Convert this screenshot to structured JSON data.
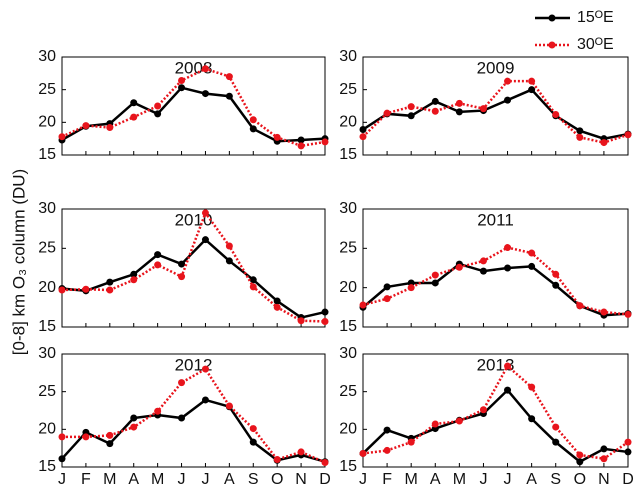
{
  "ylabel": "[0-8] km O₃ column (DU)",
  "chart_data": [
    {
      "type": "line",
      "title": "2008",
      "ylim": [
        15,
        30
      ],
      "yticks": [
        15,
        20,
        25,
        30
      ],
      "series": [
        {
          "name": "15ᴼE",
          "color": "#000000",
          "values": [
            17.3,
            19.4,
            19.8,
            23.0,
            21.3,
            25.3,
            24.4,
            24.0,
            19.0,
            17.1,
            17.3,
            17.5
          ]
        },
        {
          "name": "30ᴼE",
          "color": "#e8141c",
          "values": [
            17.8,
            19.5,
            19.2,
            20.8,
            22.5,
            26.4,
            28.2,
            27.0,
            20.4,
            17.7,
            16.4,
            17.0
          ]
        }
      ]
    },
    {
      "type": "line",
      "title": "2009",
      "ylim": [
        15,
        30
      ],
      "yticks": [
        15,
        20,
        25,
        30
      ],
      "series": [
        {
          "name": "15ᴼE",
          "color": "#000000",
          "values": [
            18.9,
            21.3,
            21.0,
            23.2,
            21.6,
            21.8,
            23.4,
            25.0,
            21.0,
            18.7,
            17.5,
            18.2
          ]
        },
        {
          "name": "30ᴼE",
          "color": "#e8141c",
          "values": [
            17.8,
            21.4,
            22.4,
            21.7,
            22.9,
            22.1,
            26.3,
            26.3,
            21.2,
            17.7,
            16.9,
            18.1
          ]
        }
      ]
    },
    {
      "type": "line",
      "title": "2010",
      "ylim": [
        15,
        30
      ],
      "yticks": [
        15,
        20,
        25,
        30
      ],
      "series": [
        {
          "name": "15ᴼE",
          "color": "#000000",
          "values": [
            19.9,
            19.6,
            20.7,
            21.7,
            24.2,
            23.0,
            26.1,
            23.4,
            21.0,
            18.3,
            16.2,
            16.9
          ]
        },
        {
          "name": "30ᴼE",
          "color": "#e8141c",
          "values": [
            19.7,
            19.8,
            19.7,
            21.0,
            22.9,
            21.4,
            29.5,
            25.3,
            20.1,
            17.5,
            15.8,
            15.7
          ]
        }
      ]
    },
    {
      "type": "line",
      "title": "2011",
      "ylim": [
        15,
        30
      ],
      "yticks": [
        15,
        20,
        25,
        30
      ],
      "series": [
        {
          "name": "15ᴼE",
          "color": "#000000",
          "values": [
            17.5,
            20.1,
            20.6,
            20.6,
            23.0,
            22.1,
            22.5,
            22.7,
            20.3,
            17.7,
            16.5,
            16.7
          ]
        },
        {
          "name": "30ᴼE",
          "color": "#e8141c",
          "values": [
            17.8,
            18.6,
            20.0,
            21.6,
            22.6,
            23.4,
            25.1,
            24.4,
            21.7,
            17.7,
            16.9,
            16.6
          ]
        }
      ]
    },
    {
      "type": "line",
      "title": "2012",
      "ylim": [
        15,
        30
      ],
      "yticks": [
        15,
        20,
        25,
        30
      ],
      "categories": [
        "J",
        "F",
        "M",
        "A",
        "M",
        "J",
        "J",
        "A",
        "S",
        "O",
        "N",
        "D"
      ],
      "series": [
        {
          "name": "15ᴼE",
          "color": "#000000",
          "values": [
            16.1,
            19.6,
            18.1,
            21.5,
            21.9,
            21.5,
            23.9,
            23.0,
            18.3,
            15.9,
            16.6,
            15.7
          ]
        },
        {
          "name": "30ᴼE",
          "color": "#e8141c",
          "values": [
            19.0,
            19.0,
            19.2,
            20.3,
            22.4,
            26.2,
            28.0,
            23.1,
            20.1,
            16.0,
            17.0,
            15.6
          ]
        }
      ]
    },
    {
      "type": "line",
      "title": "2013",
      "ylim": [
        15,
        30
      ],
      "yticks": [
        15,
        20,
        25,
        30
      ],
      "categories": [
        "J",
        "F",
        "M",
        "A",
        "M",
        "J",
        "J",
        "A",
        "S",
        "O",
        "N",
        "D"
      ],
      "series": [
        {
          "name": "15ᴼE",
          "color": "#000000",
          "values": [
            16.8,
            19.9,
            18.8,
            20.1,
            21.2,
            22.1,
            25.2,
            21.4,
            18.3,
            15.7,
            17.4,
            17.0
          ]
        },
        {
          "name": "30ᴼE",
          "color": "#e8141c",
          "values": [
            16.8,
            17.2,
            18.3,
            20.7,
            21.1,
            22.6,
            28.4,
            25.6,
            20.3,
            16.6,
            16.1,
            18.3
          ]
        }
      ]
    }
  ]
}
